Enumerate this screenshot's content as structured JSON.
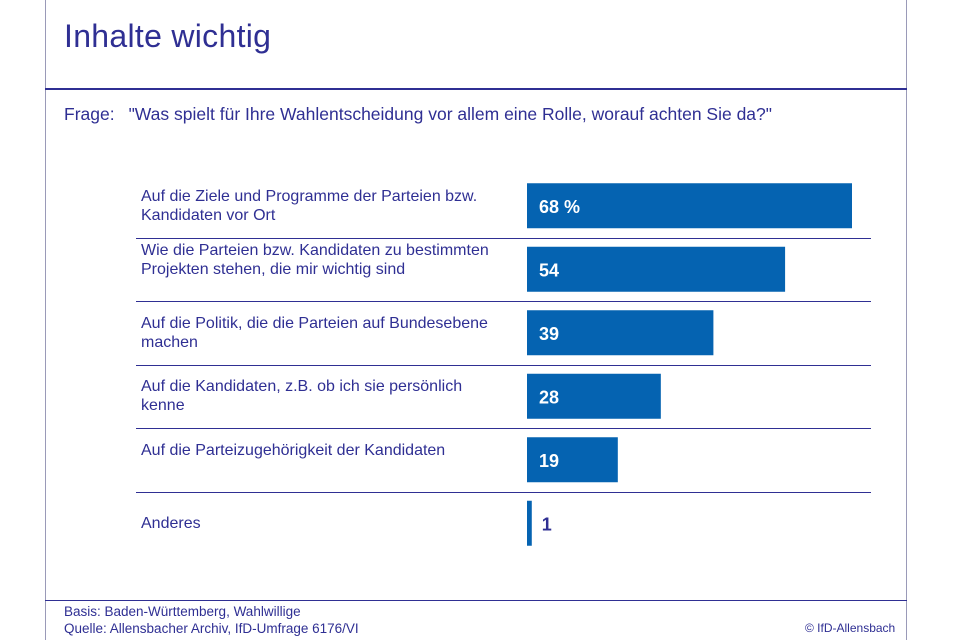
{
  "title": "Inhalte wichtig",
  "question": {
    "label": "Frage:",
    "text": "\"Was spielt für Ihre Wahlentscheidung vor allem eine Rolle, worauf achten Sie da?\""
  },
  "chart_data": {
    "type": "bar",
    "orientation": "horizontal",
    "categories": [
      "Auf die Ziele und Programme der Parteien bzw. Kandidaten vor Ort",
      "Wie die Parteien bzw. Kandidaten zu bestimmten Projekten stehen, die mir wichtig sind",
      "Auf die Politik, die die Parteien auf Bundesebene machen",
      "Auf die Kandidaten, z.B. ob ich sie persönlich kenne",
      "Auf die Parteizugehörigkeit der Kandidaten",
      "Anderes"
    ],
    "values": [
      68,
      54,
      39,
      28,
      19,
      1
    ],
    "value_labels": [
      "68 %",
      "54",
      "39",
      "28",
      "19",
      "1"
    ],
    "unit": "%",
    "xlim": [
      0,
      70
    ],
    "bar_color": "#0563b1",
    "label_color_inside": "#ffffff",
    "label_color_outside": "#2f2f93",
    "grid": false
  },
  "footer": {
    "basis": "Basis: Baden-Württemberg, Wahlwillige",
    "source": "Quelle: Allensbacher Archiv, IfD-Umfrage 6176/VI",
    "copyright": "© IfD-Allensbach"
  },
  "colors": {
    "text": "#2f2f93",
    "bar": "#0563b1",
    "frame": "#9a9ab8"
  }
}
